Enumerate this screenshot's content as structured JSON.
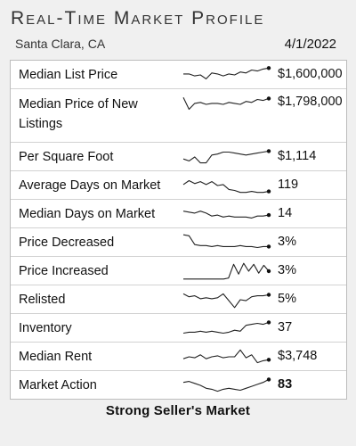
{
  "header": {
    "title": "Real-Time Market Profile",
    "location": "Santa Clara, CA",
    "date": "4/1/2022"
  },
  "rows": [
    {
      "label": "Median List Price",
      "value": "$1,600,000",
      "trend": [
        0.55,
        0.55,
        0.45,
        0.5,
        0.3,
        0.6,
        0.55,
        0.45,
        0.55,
        0.5,
        0.65,
        0.6,
        0.75,
        0.7,
        0.8,
        0.85
      ]
    },
    {
      "label": "Median Price of New Listings",
      "value": "$1,798,000",
      "trend": [
        0.85,
        0.25,
        0.55,
        0.6,
        0.5,
        0.55,
        0.55,
        0.5,
        0.6,
        0.55,
        0.5,
        0.65,
        0.6,
        0.75,
        0.7,
        0.8
      ]
    },
    {
      "label": "Per Square Foot",
      "value": "$1,114",
      "trend": [
        0.4,
        0.3,
        0.5,
        0.2,
        0.2,
        0.6,
        0.65,
        0.75,
        0.75,
        0.7,
        0.65,
        0.6,
        0.65,
        0.7,
        0.75,
        0.8
      ]
    },
    {
      "label": "Average Days on Market",
      "value": "119",
      "trend": [
        0.55,
        0.75,
        0.6,
        0.7,
        0.55,
        0.7,
        0.5,
        0.55,
        0.3,
        0.25,
        0.15,
        0.15,
        0.2,
        0.15,
        0.15,
        0.2
      ]
    },
    {
      "label": "Median Days on Market",
      "value": "14",
      "trend": [
        0.65,
        0.6,
        0.55,
        0.65,
        0.55,
        0.4,
        0.45,
        0.35,
        0.4,
        0.35,
        0.35,
        0.35,
        0.3,
        0.4,
        0.4,
        0.45
      ]
    },
    {
      "label": "Price Decreased",
      "value": "3%",
      "trend": [
        0.9,
        0.85,
        0.4,
        0.35,
        0.35,
        0.3,
        0.35,
        0.3,
        0.3,
        0.3,
        0.35,
        0.3,
        0.3,
        0.25,
        0.3,
        0.3
      ]
    },
    {
      "label": "Price Increased",
      "value": "3%",
      "trend": [
        0.1,
        0.1,
        0.1,
        0.1,
        0.1,
        0.1,
        0.1,
        0.1,
        0.1,
        0.15,
        0.85,
        0.35,
        0.9,
        0.5,
        0.85,
        0.4,
        0.8,
        0.5
      ]
    },
    {
      "label": "Relisted",
      "value": "5%",
      "trend": [
        0.8,
        0.65,
        0.7,
        0.55,
        0.6,
        0.55,
        0.6,
        0.8,
        0.45,
        0.1,
        0.5,
        0.45,
        0.65,
        0.7,
        0.7,
        0.75
      ]
    },
    {
      "label": "Inventory",
      "value": "37",
      "trend": [
        0.25,
        0.3,
        0.3,
        0.35,
        0.3,
        0.35,
        0.3,
        0.25,
        0.3,
        0.4,
        0.35,
        0.65,
        0.7,
        0.75,
        0.7,
        0.8
      ]
    },
    {
      "label": "Median Rent",
      "value": "$3,748",
      "trend": [
        0.4,
        0.5,
        0.45,
        0.6,
        0.4,
        0.5,
        0.55,
        0.45,
        0.5,
        0.5,
        0.85,
        0.45,
        0.6,
        0.2,
        0.3,
        0.35
      ]
    },
    {
      "label": "Market Action",
      "value": "83",
      "trend": [
        0.65,
        0.7,
        0.6,
        0.5,
        0.35,
        0.3,
        0.2,
        0.3,
        0.35,
        0.3,
        0.25,
        0.35,
        0.45,
        0.55,
        0.65,
        0.8
      ]
    }
  ],
  "footer": {
    "verdict": "Strong Seller's Market"
  }
}
